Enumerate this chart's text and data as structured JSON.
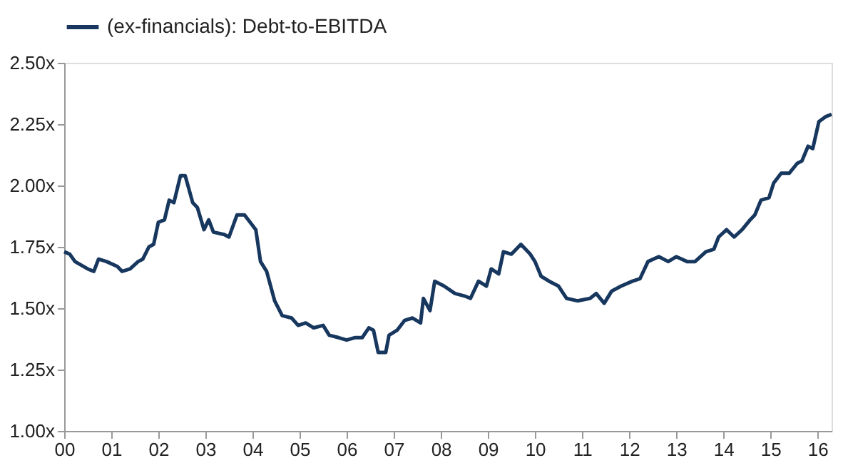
{
  "chart_data": {
    "type": "line",
    "legend": "top",
    "grid": false,
    "marker": "none",
    "line_style": "solid",
    "xlim": [
      2000,
      2016.3
    ],
    "ylim": [
      1.0,
      2.5
    ],
    "xticks": [
      {
        "value": 2000,
        "label": "00"
      },
      {
        "value": 2001,
        "label": "01"
      },
      {
        "value": 2002,
        "label": "02"
      },
      {
        "value": 2003,
        "label": "03"
      },
      {
        "value": 2004,
        "label": "04"
      },
      {
        "value": 2005,
        "label": "05"
      },
      {
        "value": 2006,
        "label": "06"
      },
      {
        "value": 2007,
        "label": "07"
      },
      {
        "value": 2008,
        "label": "08"
      },
      {
        "value": 2009,
        "label": "09"
      },
      {
        "value": 2010,
        "label": "10"
      },
      {
        "value": 2011,
        "label": "11"
      },
      {
        "value": 2012,
        "label": "12"
      },
      {
        "value": 2013,
        "label": "13"
      },
      {
        "value": 2014,
        "label": "14"
      },
      {
        "value": 2015,
        "label": "15"
      },
      {
        "value": 2016,
        "label": "16"
      }
    ],
    "yticks": [
      {
        "value": 1.0,
        "label": "1.00x"
      },
      {
        "value": 1.25,
        "label": "1.25x"
      },
      {
        "value": 1.5,
        "label": "1.50x"
      },
      {
        "value": 1.75,
        "label": "1.75x"
      },
      {
        "value": 2.0,
        "label": "2.00x"
      },
      {
        "value": 2.25,
        "label": "2.25x"
      },
      {
        "value": 2.5,
        "label": "2.50x"
      }
    ],
    "series": [
      {
        "name": "(ex-financials): Debt-to-EBITDA",
        "color": "#17375e",
        "x": [
          2000,
          2000.12,
          2000.23,
          2000.5,
          2000.63,
          2000.73,
          2000.9,
          2001.13,
          2001.23,
          2001.4,
          2001.57,
          2001.67,
          2001.8,
          2001.9,
          2002.0,
          2002.13,
          2002.23,
          2002.33,
          2002.47,
          2002.57,
          2002.73,
          2002.83,
          2002.97,
          2003.07,
          2003.17,
          2003.4,
          2003.5,
          2003.67,
          2003.83,
          2004.07,
          2004.17,
          2004.3,
          2004.47,
          2004.63,
          2004.83,
          2004.97,
          2005.13,
          2005.3,
          2005.5,
          2005.63,
          2005.83,
          2006.0,
          2006.17,
          2006.33,
          2006.47,
          2006.57,
          2006.67,
          2006.83,
          2006.9,
          2007.07,
          2007.23,
          2007.4,
          2007.57,
          2007.63,
          2007.77,
          2007.87,
          2008.07,
          2008.3,
          2008.5,
          2008.63,
          2008.8,
          2008.97,
          2009.07,
          2009.23,
          2009.33,
          2009.5,
          2009.7,
          2009.9,
          2010.0,
          2010.13,
          2010.3,
          2010.5,
          2010.67,
          2010.9,
          2011.17,
          2011.3,
          2011.47,
          2011.63,
          2011.83,
          2012.07,
          2012.23,
          2012.4,
          2012.63,
          2012.83,
          2013.0,
          2013.23,
          2013.4,
          2013.63,
          2013.8,
          2013.9,
          2014.07,
          2014.23,
          2014.4,
          2014.57,
          2014.67,
          2014.8,
          2014.97,
          2015.07,
          2015.23,
          2015.4,
          2015.57,
          2015.67,
          2015.8,
          2015.9,
          2016.03,
          2016.17,
          2016.3
        ],
        "values": [
          1.73,
          1.72,
          1.69,
          1.66,
          1.65,
          1.7,
          1.69,
          1.67,
          1.65,
          1.66,
          1.69,
          1.7,
          1.75,
          1.76,
          1.85,
          1.86,
          1.94,
          1.93,
          2.04,
          2.04,
          1.93,
          1.91,
          1.82,
          1.86,
          1.81,
          1.8,
          1.79,
          1.88,
          1.88,
          1.82,
          1.69,
          1.65,
          1.53,
          1.47,
          1.46,
          1.43,
          1.44,
          1.42,
          1.43,
          1.39,
          1.38,
          1.37,
          1.38,
          1.38,
          1.42,
          1.41,
          1.32,
          1.32,
          1.39,
          1.41,
          1.45,
          1.46,
          1.44,
          1.54,
          1.49,
          1.61,
          1.59,
          1.56,
          1.55,
          1.54,
          1.61,
          1.59,
          1.66,
          1.64,
          1.73,
          1.72,
          1.76,
          1.72,
          1.69,
          1.63,
          1.61,
          1.59,
          1.54,
          1.53,
          1.54,
          1.56,
          1.52,
          1.57,
          1.59,
          1.61,
          1.62,
          1.69,
          1.71,
          1.69,
          1.71,
          1.69,
          1.69,
          1.73,
          1.74,
          1.79,
          1.82,
          1.79,
          1.82,
          1.86,
          1.88,
          1.94,
          1.95,
          2.01,
          2.05,
          2.05,
          2.09,
          2.1,
          2.16,
          2.15,
          2.26,
          2.28,
          2.29
        ]
      }
    ]
  }
}
